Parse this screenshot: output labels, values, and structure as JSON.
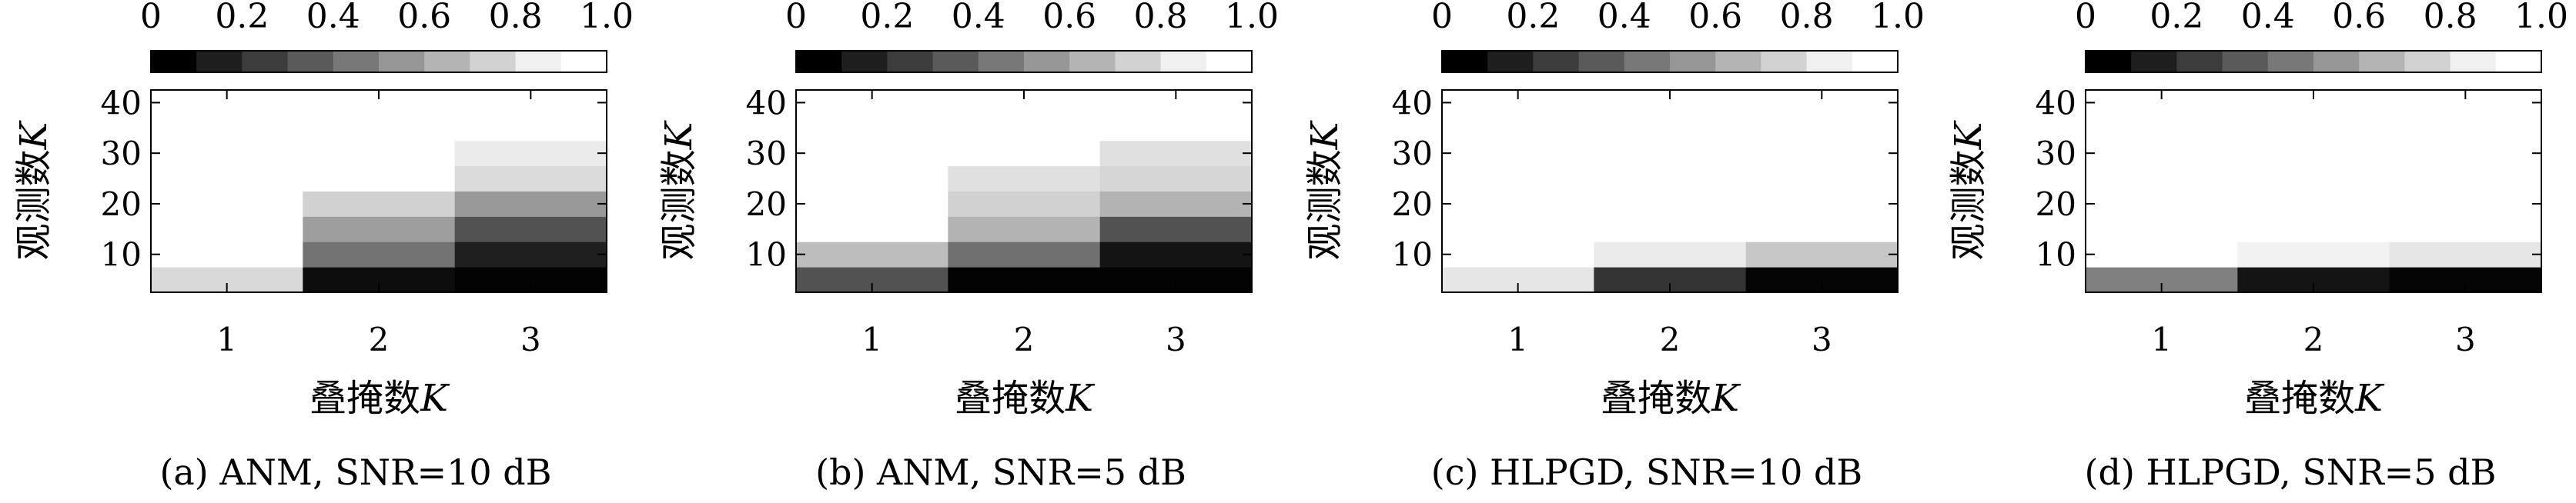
{
  "colorbar": {
    "tick_labels": [
      "0",
      "0.2",
      "0.4",
      "0.6",
      "0.8",
      "1.0"
    ],
    "gradient": [
      "#000000",
      "#1e1e1e",
      "#3c3c3c",
      "#5a5a5a",
      "#787878",
      "#969696",
      "#b4b4b4",
      "#d2d2d2",
      "#f0f0f0",
      "#ffffff"
    ]
  },
  "axis_labels": {
    "y_prefix": "观测数",
    "x_prefix": "叠掩数",
    "var": "K"
  },
  "chart_data": [
    {
      "type": "heatmap",
      "caption": "(a) ANM, SNR=10 dB",
      "xlabel": "叠掩数K",
      "ylabel": "观测数K",
      "x_categories": [
        "1",
        "2",
        "3"
      ],
      "y": [
        5,
        10,
        15,
        20,
        25,
        30,
        35,
        40
      ],
      "yticks": [
        10,
        20,
        30,
        40
      ],
      "ylim": [
        2.5,
        42.5
      ],
      "value_range": [
        0,
        1
      ],
      "values": [
        [
          0.85,
          0.05,
          0.01
        ],
        [
          1.0,
          0.45,
          0.12
        ],
        [
          1.0,
          0.62,
          0.32
        ],
        [
          1.0,
          0.82,
          0.6
        ],
        [
          1.0,
          1.0,
          0.86
        ],
        [
          1.0,
          1.0,
          0.92
        ],
        [
          1.0,
          1.0,
          1.0
        ],
        [
          1.0,
          1.0,
          1.0
        ]
      ]
    },
    {
      "type": "heatmap",
      "caption": "(b) ANM, SNR=5 dB",
      "xlabel": "叠掩数K",
      "ylabel": "观测数K",
      "x_categories": [
        "1",
        "2",
        "3"
      ],
      "y": [
        5,
        10,
        15,
        20,
        25,
        30,
        35,
        40
      ],
      "yticks": [
        10,
        20,
        30,
        40
      ],
      "ylim": [
        2.5,
        42.5
      ],
      "value_range": [
        0,
        1
      ],
      "values": [
        [
          0.32,
          0.01,
          0.01
        ],
        [
          0.74,
          0.44,
          0.08
        ],
        [
          1.0,
          0.7,
          0.32
        ],
        [
          1.0,
          0.82,
          0.7
        ],
        [
          1.0,
          0.88,
          0.84
        ],
        [
          1.0,
          1.0,
          0.88
        ],
        [
          1.0,
          1.0,
          1.0
        ],
        [
          1.0,
          1.0,
          1.0
        ]
      ]
    },
    {
      "type": "heatmap",
      "caption": "(c) HLPGD, SNR=10 dB",
      "xlabel": "叠掩数K",
      "ylabel": "观测数K",
      "x_categories": [
        "1",
        "2",
        "3"
      ],
      "y": [
        5,
        10,
        15,
        20,
        25,
        30,
        35,
        40
      ],
      "yticks": [
        10,
        20,
        30,
        40
      ],
      "ylim": [
        2.5,
        42.5
      ],
      "value_range": [
        0,
        1
      ],
      "values": [
        [
          0.9,
          0.2,
          0.02
        ],
        [
          1.0,
          0.92,
          0.78
        ],
        [
          1.0,
          1.0,
          1.0
        ],
        [
          1.0,
          1.0,
          1.0
        ],
        [
          1.0,
          1.0,
          1.0
        ],
        [
          1.0,
          1.0,
          1.0
        ],
        [
          1.0,
          1.0,
          1.0
        ],
        [
          1.0,
          1.0,
          1.0
        ]
      ]
    },
    {
      "type": "heatmap",
      "caption": "(d) HLPGD, SNR=5 dB",
      "xlabel": "叠掩数K",
      "ylabel": "观测数K",
      "x_categories": [
        "1",
        "2",
        "3"
      ],
      "y": [
        5,
        10,
        15,
        20,
        25,
        30,
        35,
        40
      ],
      "yticks": [
        10,
        20,
        30,
        40
      ],
      "ylim": [
        2.5,
        42.5
      ],
      "value_range": [
        0,
        1
      ],
      "values": [
        [
          0.5,
          0.08,
          0.02
        ],
        [
          1.0,
          0.95,
          0.9
        ],
        [
          1.0,
          1.0,
          1.0
        ],
        [
          1.0,
          1.0,
          1.0
        ],
        [
          1.0,
          1.0,
          1.0
        ],
        [
          1.0,
          1.0,
          1.0
        ],
        [
          1.0,
          1.0,
          1.0
        ],
        [
          1.0,
          1.0,
          1.0
        ]
      ]
    }
  ]
}
